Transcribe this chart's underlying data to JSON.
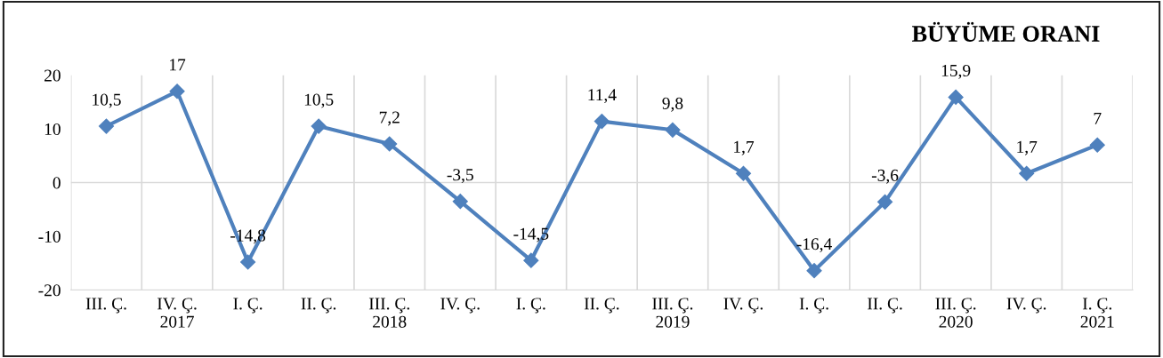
{
  "chart_data": {
    "type": "line",
    "title": "BÜYÜME ORANI",
    "categories": [
      "III. Ç.",
      "IV. Ç.\n2017",
      "I. Ç.",
      "II. Ç.",
      "III. Ç.\n2018",
      "IV. Ç.",
      "I. Ç.",
      "II. Ç.",
      "III. Ç.\n2019",
      "IV. Ç.",
      "I. Ç.",
      "II. Ç.",
      "III. Ç.\n2020",
      "IV. Ç.",
      "I. Ç.\n2021"
    ],
    "series": [
      {
        "color": "#4f81bd",
        "values": [
          10.5,
          17,
          -14.8,
          10.5,
          7.2,
          -3.5,
          -14.5,
          11.4,
          9.8,
          1.7,
          -16.4,
          -3.6,
          15.9,
          1.7,
          7
        ],
        "value_labels": [
          "10,5",
          "17",
          "-14,8",
          "10,5",
          "7,2",
          "-3,5",
          "-14,5",
          "11,4",
          "9,8",
          "1,7",
          "-16,4",
          "-3,6",
          "15,9",
          "1,7",
          "7"
        ]
      }
    ],
    "ylim": [
      -20,
      20
    ],
    "yticks": [
      -20,
      -10,
      0,
      10,
      20
    ],
    "ref_lines": [
      {
        "axis": "y",
        "value": 0,
        "color": "#d9d9d9"
      }
    ],
    "grid": "x",
    "marker": "diamond",
    "line_style": "solid",
    "legend": false
  }
}
